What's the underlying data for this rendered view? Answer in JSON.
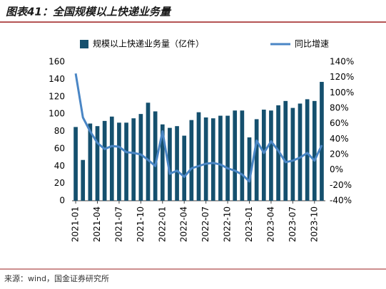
{
  "chart_data": {
    "type": "bar-line",
    "title": "图表41：全国规模以上快递业务量",
    "source": "来源：wind，国金证券研究所",
    "categories": [
      "2021-01",
      null,
      null,
      "2021-04",
      null,
      null,
      "2021-07",
      null,
      null,
      "2021-10",
      null,
      null,
      "2022-01",
      null,
      null,
      "2022-04",
      null,
      null,
      "2022-07",
      null,
      null,
      "2022-10",
      null,
      null,
      "2023-01",
      null,
      null,
      "2023-04",
      null,
      null,
      "2023-07",
      null,
      null,
      "2023-10",
      null
    ],
    "series": [
      {
        "name": "规模以上快递业务量（亿件）",
        "type": "bar",
        "color": "#15506e",
        "values": [
          85,
          47,
          89,
          86,
          92,
          97,
          90,
          90,
          95,
          100,
          113,
          103,
          88,
          84,
          86,
          75,
          93,
          102,
          96,
          95,
          98,
          98,
          104,
          104,
          73,
          94,
          105,
          104,
          110,
          115,
          107,
          112,
          117,
          115,
          137
        ]
      },
      {
        "name": "同比增速",
        "type": "line",
        "axis": "y2",
        "color": "#4a86c5",
        "values": [
          125,
          68,
          50,
          35,
          27,
          31,
          30,
          23,
          22,
          20,
          13,
          5,
          50,
          -5,
          -1,
          -9,
          2,
          5,
          8,
          9,
          7,
          2,
          -1,
          -6,
          -15,
          38,
          22,
          37,
          25,
          10,
          12,
          16,
          22,
          12,
          32
        ]
      }
    ],
    "ylim": [
      0,
      160
    ],
    "yticks": [
      0,
      20,
      40,
      60,
      80,
      100,
      120,
      140,
      160
    ],
    "y2lim": [
      -40,
      140
    ],
    "y2ticks": [
      {
        "value": -40,
        "label": "-40%"
      },
      {
        "value": -20,
        "label": "-20%"
      },
      {
        "value": 0,
        "label": "0%"
      },
      {
        "value": 20,
        "label": "20%"
      },
      {
        "value": 40,
        "label": "40%"
      },
      {
        "value": 60,
        "label": "60%"
      },
      {
        "value": 80,
        "label": "80%"
      },
      {
        "value": 100,
        "label": "100%"
      },
      {
        "value": 120,
        "label": "120%"
      },
      {
        "value": 140,
        "label": "140%"
      }
    ],
    "legend": "top",
    "grid": false
  }
}
